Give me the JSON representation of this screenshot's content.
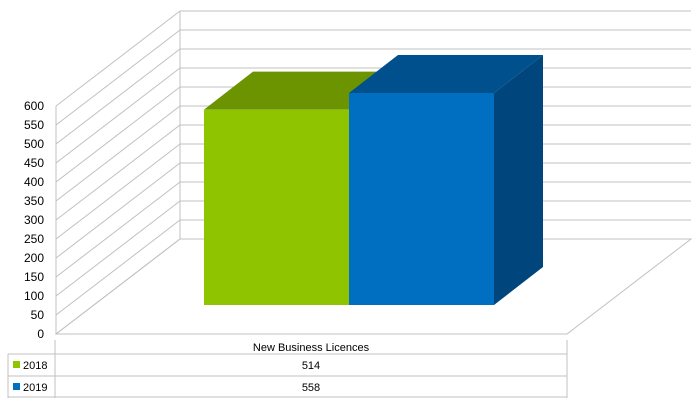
{
  "chart_data": {
    "type": "bar",
    "categories": [
      "New Business Licences"
    ],
    "series": [
      {
        "name": "2018",
        "values": [
          514
        ],
        "color": "#8fc400",
        "top_color": "#6c9400"
      },
      {
        "name": "2019",
        "values": [
          558
        ],
        "color": "#006fc2",
        "top_color": "#00508e",
        "side_color": "#00467c"
      }
    ],
    "ylim": [
      0,
      600
    ],
    "yticks": [
      0,
      50,
      100,
      150,
      200,
      250,
      300,
      350,
      400,
      450,
      500,
      550,
      600
    ],
    "grid": true,
    "legend": "data-table-below",
    "gridline_color": "#c0c0c0"
  }
}
